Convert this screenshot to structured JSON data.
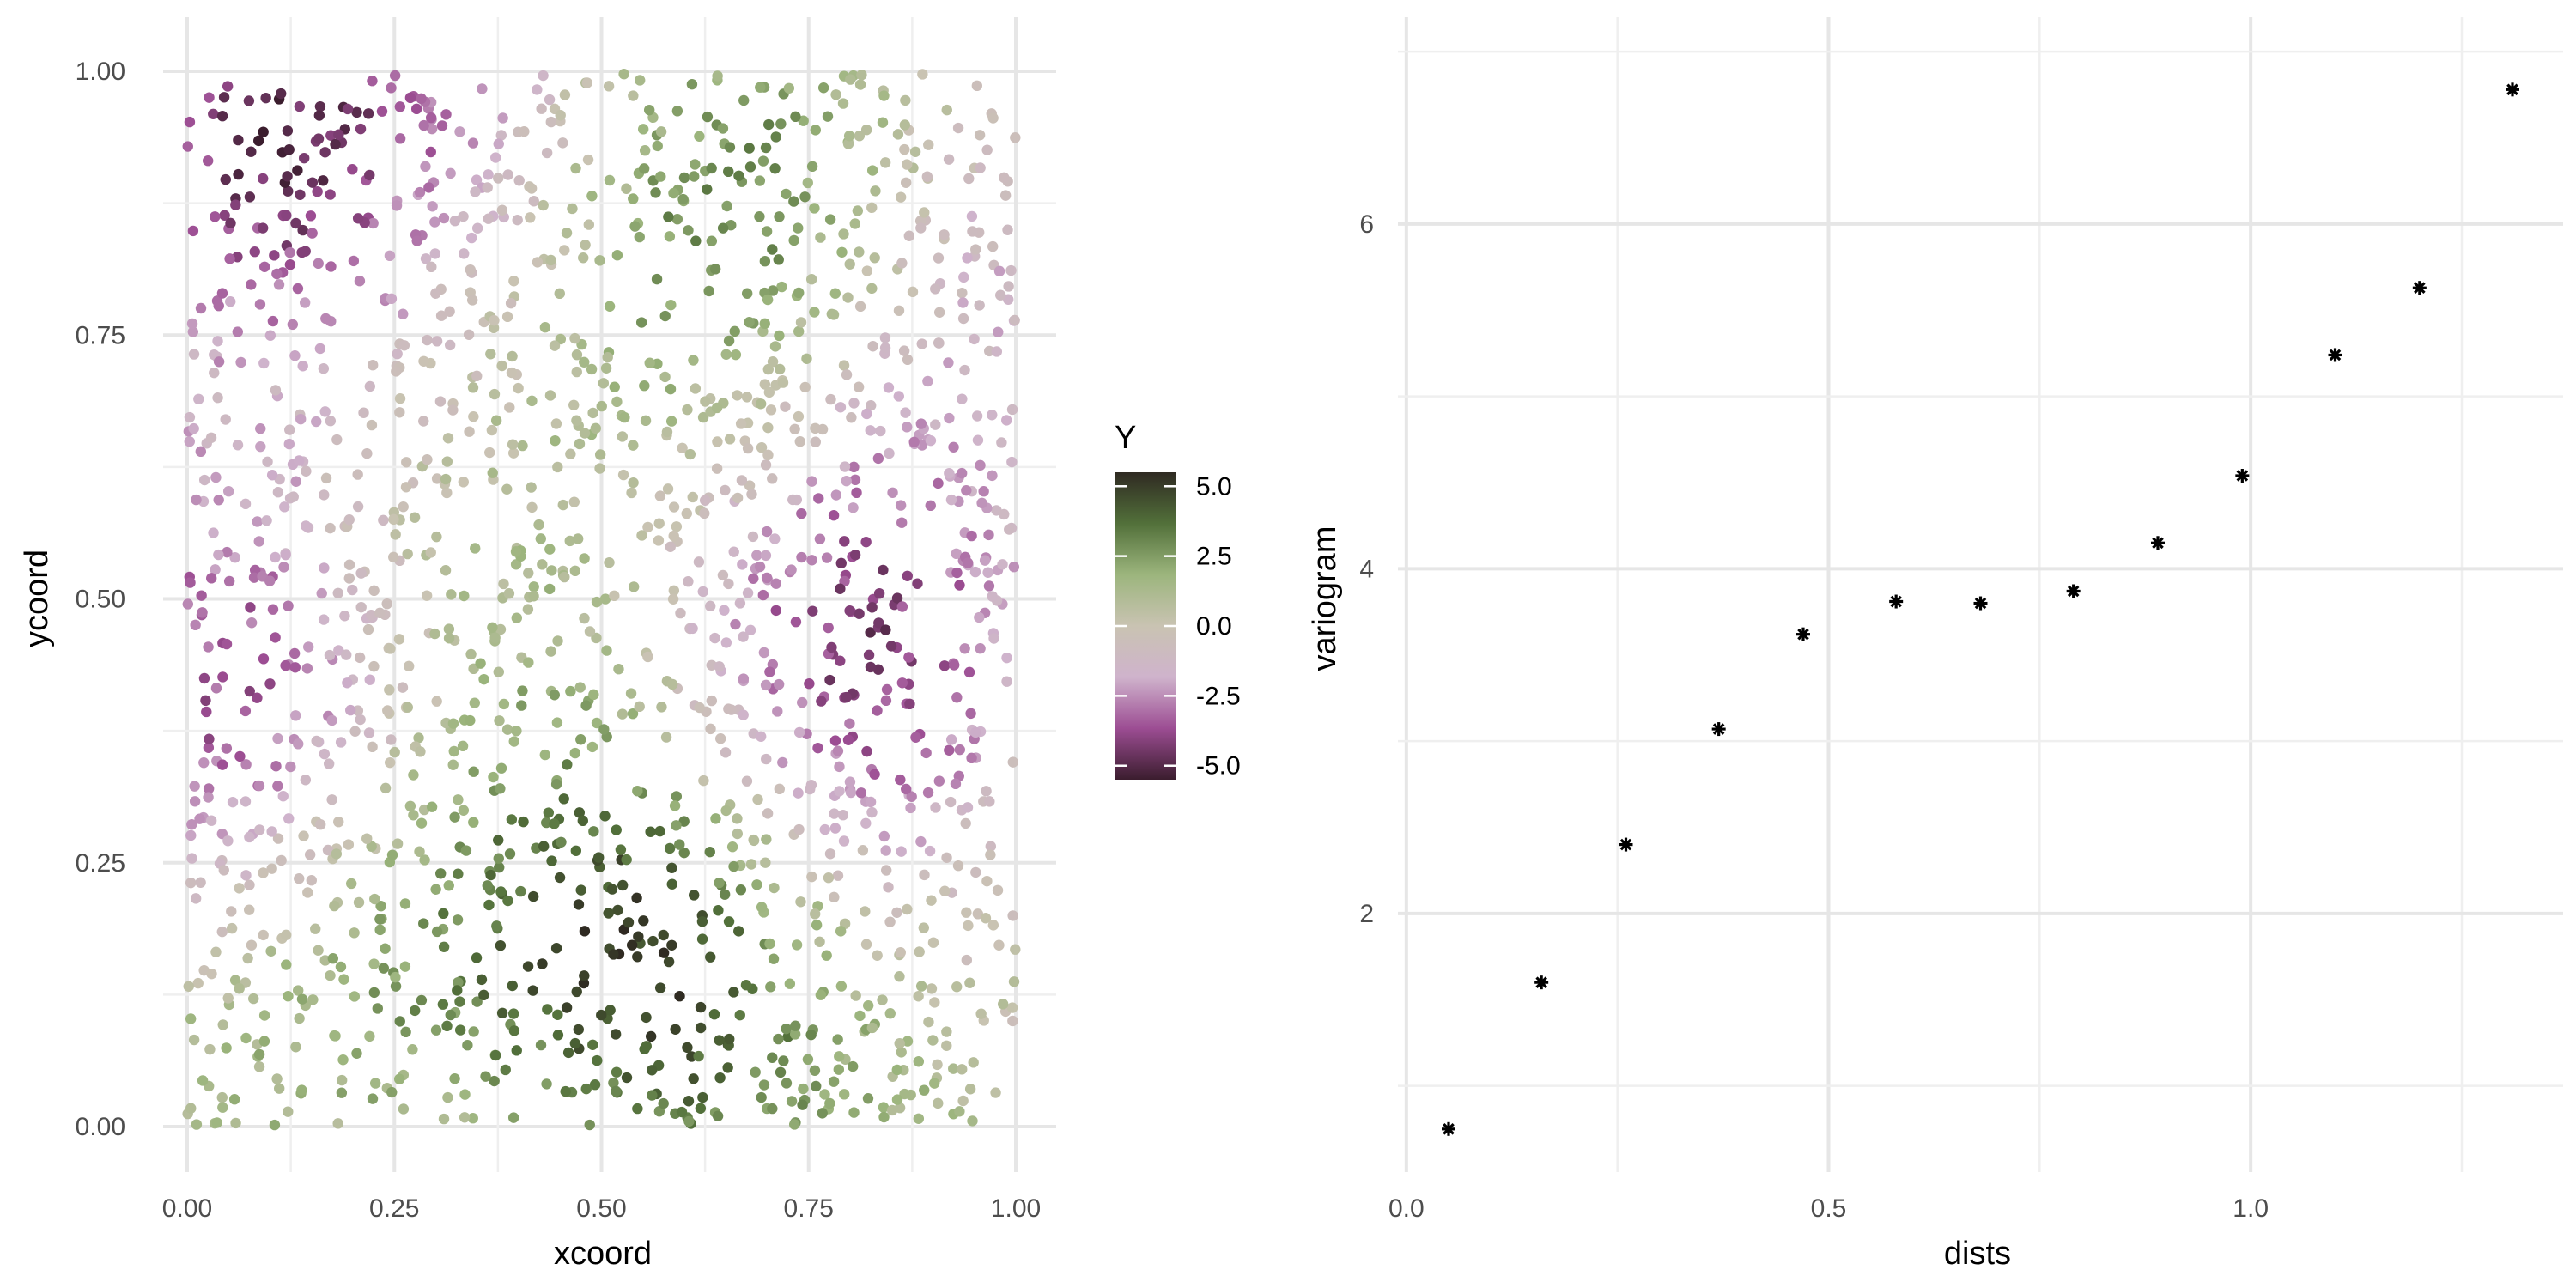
{
  "chart_data": [
    {
      "type": "scatter",
      "xlabel": "xcoord",
      "ylabel": "ycoord",
      "xlim": [
        0,
        1
      ],
      "ylim": [
        0,
        1
      ],
      "x_ticks": [
        "0.00",
        "0.25",
        "0.50",
        "0.75",
        "1.00"
      ],
      "y_ticks": [
        "0.00",
        "0.25",
        "0.50",
        "0.75",
        "1.00"
      ],
      "grid": true,
      "color_legend": {
        "title": "Y",
        "range": [
          -5.5,
          5.5
        ],
        "ticks": [
          "5.0",
          "2.5",
          "0.0",
          "-2.5",
          "-5.0"
        ],
        "colors": [
          "#3b1d2e",
          "#9c4d93",
          "#cfb3cc",
          "#c9c3b2",
          "#9cb57d",
          "#52703a",
          "#2f2a22"
        ],
        "placement": "right"
      },
      "field_hotspots": [
        {
          "x": 0.55,
          "y": 0.15,
          "value": 5.0
        },
        {
          "x": 0.62,
          "y": 0.85,
          "value": 3.0
        },
        {
          "x": 0.25,
          "y": 0.12,
          "value": 2.5
        },
        {
          "x": 0.08,
          "y": 0.95,
          "value": -5.5
        },
        {
          "x": 0.1,
          "y": 0.4,
          "value": -3.0
        },
        {
          "x": 0.8,
          "y": 0.45,
          "value": -3.0
        },
        {
          "x": 0.95,
          "y": 0.85,
          "value": -2.0
        }
      ],
      "n_points": 1800
    },
    {
      "type": "scatter",
      "xlabel": "dists",
      "ylabel": "variogram",
      "xlim": [
        -0.01,
        1.37
      ],
      "ylim": [
        0.5,
        7.2
      ],
      "x_ticks": [
        "0.0",
        "0.5",
        "1.0"
      ],
      "y_ticks": [
        "2",
        "4",
        "6"
      ],
      "grid": true,
      "x": [
        0.05,
        0.16,
        0.26,
        0.37,
        0.47,
        0.58,
        0.68,
        0.79,
        0.89,
        0.99,
        1.1,
        1.2,
        1.31
      ],
      "y": [
        0.75,
        1.6,
        2.4,
        3.07,
        3.62,
        3.81,
        3.8,
        3.87,
        4.15,
        4.54,
        5.24,
        5.63,
        6.78
      ],
      "marker": "asterisk"
    }
  ]
}
